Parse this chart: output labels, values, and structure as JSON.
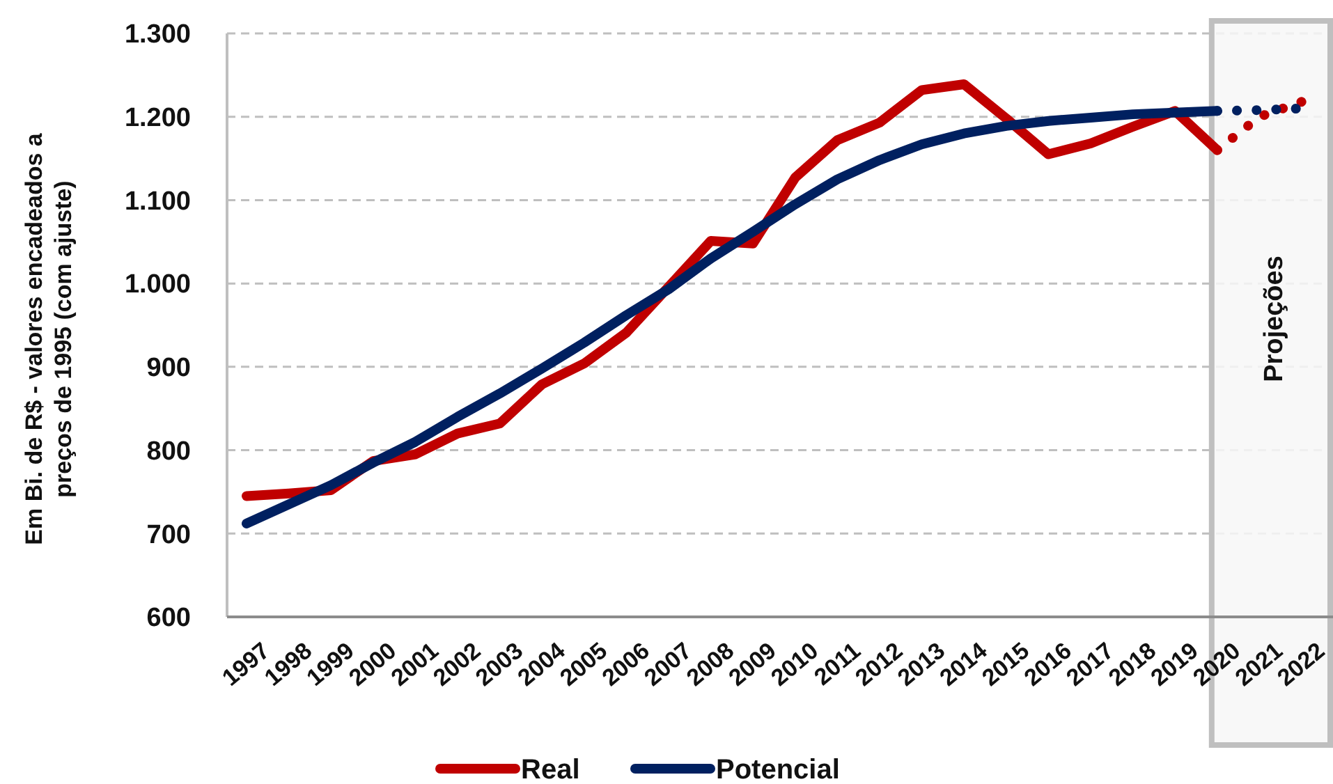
{
  "chart_data": {
    "type": "line",
    "ylabel": "Em Bi. de R$ - valores encadeados a preços de 1995 (com ajuste)",
    "categories": [
      "1997",
      "1998",
      "1999",
      "2000",
      "2001",
      "2002",
      "2003",
      "2004",
      "2005",
      "2006",
      "2007",
      "2008",
      "2009",
      "2010",
      "2011",
      "2012",
      "2013",
      "2014",
      "2015",
      "2016",
      "2017",
      "2018",
      "2019",
      "2020",
      "2021",
      "2022"
    ],
    "series": [
      {
        "name": "Real",
        "color": "#c00000",
        "values": [
          745,
          748,
          752,
          787,
          795,
          820,
          832,
          879,
          904,
          941,
          996,
          1051,
          1048,
          1127,
          1172,
          1193,
          1232,
          1239,
          1198,
          1155,
          1168,
          1188,
          1207,
          1160,
          null,
          null
        ]
      },
      {
        "name": "Potencial",
        "color": "#002060",
        "values": [
          712,
          735,
          758,
          785,
          810,
          840,
          868,
          898,
          929,
          962,
          993,
          1030,
          1062,
          1095,
          1125,
          1148,
          1167,
          1180,
          1189,
          1195,
          1199,
          1203,
          1205,
          1207,
          null,
          null
        ]
      },
      {
        "color": "#c00000",
        "line_style": "dotted",
        "values": [
          null,
          null,
          null,
          null,
          null,
          null,
          null,
          null,
          null,
          null,
          null,
          null,
          null,
          null,
          null,
          null,
          null,
          null,
          null,
          null,
          null,
          null,
          null,
          1160,
          1200,
          1218
        ]
      },
      {
        "color": "#002060",
        "line_style": "dotted",
        "values": [
          null,
          null,
          null,
          null,
          null,
          null,
          null,
          null,
          null,
          null,
          null,
          null,
          null,
          null,
          null,
          null,
          null,
          null,
          null,
          null,
          null,
          null,
          null,
          1207,
          1208,
          1210
        ]
      }
    ],
    "ylim": [
      600,
      1300
    ],
    "yticks": [
      600,
      700,
      800,
      900,
      {
        "value": 1000,
        "label": "1.000"
      },
      {
        "value": 1100,
        "label": "1.100"
      },
      {
        "value": 1200,
        "label": "1.200"
      },
      {
        "value": 1300,
        "label": "1.300"
      }
    ],
    "grid": "y",
    "legend": "bottom",
    "line_style": "solid",
    "bands": [
      {
        "axis": "x",
        "from": "2020",
        "to": "2022",
        "label": "Projeções",
        "color": "#f7f7f7"
      }
    ]
  }
}
